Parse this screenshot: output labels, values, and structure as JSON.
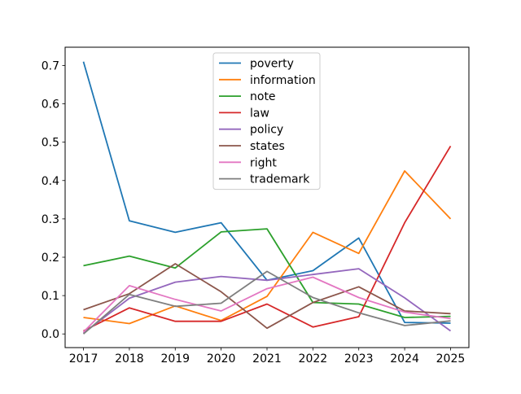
{
  "figure": {
    "background_color": "#ffffff",
    "spine_color": "#000000",
    "tick_color": "#000000",
    "legend_border_color": "#cccccc",
    "legend_background_color": "#ffffff"
  },
  "chart_data": {
    "type": "line",
    "title": "",
    "xlabel": "",
    "ylabel": "",
    "x": [
      2017,
      2018,
      2019,
      2020,
      2021,
      2022,
      2023,
      2024,
      2025
    ],
    "xtick_labels": [
      "2017",
      "2018",
      "2019",
      "2020",
      "2021",
      "2022",
      "2023",
      "2024",
      "2025"
    ],
    "yticks": [
      0.0,
      0.1,
      0.2,
      0.3,
      0.4,
      0.5,
      0.6,
      0.7
    ],
    "ytick_labels": [
      "0.0",
      "0.1",
      "0.2",
      "0.3",
      "0.4",
      "0.5",
      "0.6",
      "0.7"
    ],
    "xlim": [
      2016.6,
      2025.4
    ],
    "ylim": [
      -0.0356,
      0.7476
    ],
    "grid": false,
    "legend_position": "upper center-left inside axes",
    "series": [
      {
        "name": "poverty",
        "color": "#1f77b4",
        "values": [
          0.71,
          0.295,
          0.265,
          0.29,
          0.14,
          0.165,
          0.25,
          0.03,
          0.028
        ]
      },
      {
        "name": "information",
        "color": "#ff7f0e",
        "values": [
          0.043,
          0.027,
          0.073,
          0.035,
          0.098,
          0.265,
          0.21,
          0.425,
          0.3
        ]
      },
      {
        "name": "note",
        "color": "#2ca02c",
        "values": [
          0.178,
          0.203,
          0.172,
          0.266,
          0.274,
          0.082,
          0.078,
          0.043,
          0.046
        ]
      },
      {
        "name": "law",
        "color": "#d62728",
        "values": [
          0.008,
          0.068,
          0.033,
          0.033,
          0.078,
          0.018,
          0.045,
          0.29,
          0.49
        ]
      },
      {
        "name": "policy",
        "color": "#9467bd",
        "values": [
          0.002,
          0.093,
          0.135,
          0.15,
          0.14,
          0.155,
          0.17,
          0.094,
          0.008
        ]
      },
      {
        "name": "states",
        "color": "#8c564b",
        "values": [
          0.063,
          0.105,
          0.183,
          0.11,
          0.015,
          0.082,
          0.123,
          0.06,
          0.053
        ]
      },
      {
        "name": "right",
        "color": "#e377c2",
        "values": [
          0.005,
          0.126,
          0.09,
          0.06,
          0.118,
          0.148,
          0.095,
          0.057,
          0.04
        ]
      },
      {
        "name": "trademark",
        "color": "#7f7f7f",
        "values": [
          0.0,
          0.103,
          0.072,
          0.08,
          0.163,
          0.095,
          0.055,
          0.022,
          0.034
        ]
      }
    ]
  }
}
